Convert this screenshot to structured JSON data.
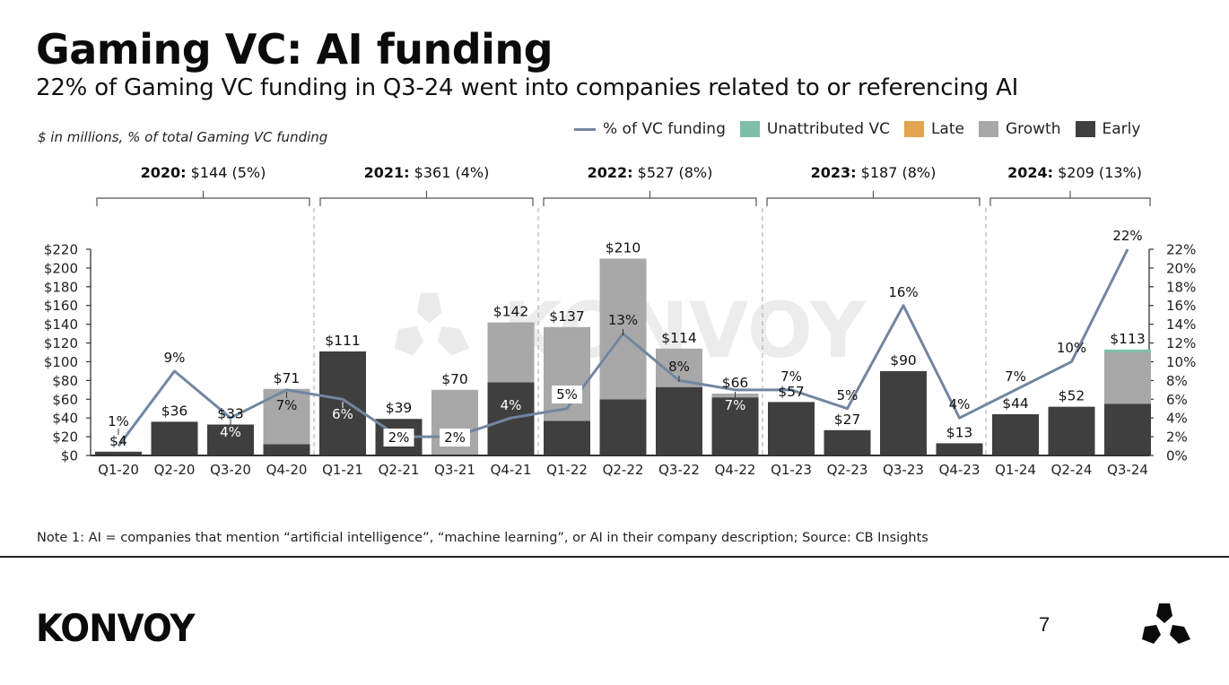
{
  "header": {
    "title": "Gaming VC: AI funding",
    "subtitle": "22% of Gaming VC funding in Q3-24 went into companies related to or referencing AI",
    "units": "$ in millions, % of total Gaming VC funding"
  },
  "legend": [
    {
      "label": "% of VC funding",
      "kind": "line",
      "color": "#7286a0"
    },
    {
      "label": "Unattributed VC",
      "kind": "swatch",
      "color": "#7dbfa8"
    },
    {
      "label": "Late",
      "kind": "swatch",
      "color": "#e3a452"
    },
    {
      "label": "Growth",
      "kind": "swatch",
      "color": "#a8a8a8"
    },
    {
      "label": "Early",
      "kind": "swatch",
      "color": "#3f3f3f"
    }
  ],
  "year_summaries": [
    {
      "year": "2020:",
      "value": " $144 (5%)"
    },
    {
      "year": "2021:",
      "value": " $361 (4%)"
    },
    {
      "year": "2022:",
      "value": " $527 (8%)"
    },
    {
      "year": "2023:",
      "value": " $187 (8%)"
    },
    {
      "year": "2024:",
      "value": " $209 (13%)"
    }
  ],
  "footer": {
    "note": "Note 1: AI = companies that mention “artificial intelligence”, “machine learning”, or AI in their company description; Source: CB Insights",
    "logo": "KONVOY",
    "page_number": "7",
    "watermark": "KONVOY"
  },
  "colors": {
    "early": "#3f3f3f",
    "growth": "#a8a8a8",
    "late": "#e3a452",
    "unattributed": "#7dbfa8",
    "line": "#7286a0"
  },
  "chart_data": {
    "type": "bar",
    "title": "Gaming VC: AI funding",
    "xlabel": "",
    "ylabel": "$ in millions",
    "ylabel_right": "% of total Gaming VC funding",
    "ylim": [
      0,
      220
    ],
    "ylim_right": [
      0,
      22
    ],
    "yticks": [
      "$0",
      "$20",
      "$40",
      "$60",
      "$80",
      "$100",
      "$120",
      "$140",
      "$160",
      "$180",
      "$200",
      "$220"
    ],
    "yticks_right": [
      "0%",
      "2%",
      "4%",
      "6%",
      "8%",
      "10%",
      "12%",
      "14%",
      "16%",
      "18%",
      "20%",
      "22%"
    ],
    "grid": false,
    "legend_position": "top-right",
    "stacked": true,
    "categories": [
      "Q1-20",
      "Q2-20",
      "Q3-20",
      "Q4-20",
      "Q1-21",
      "Q2-21",
      "Q3-21",
      "Q4-21",
      "Q1-22",
      "Q2-22",
      "Q3-22",
      "Q4-22",
      "Q1-23",
      "Q2-23",
      "Q3-23",
      "Q4-23",
      "Q1-24",
      "Q2-24",
      "Q3-24"
    ],
    "totals": [
      4,
      36,
      33,
      71,
      111,
      39,
      70,
      142,
      137,
      210,
      114,
      66,
      57,
      27,
      90,
      13,
      44,
      52,
      113
    ],
    "total_labels": [
      "$4",
      "$36",
      "$33",
      "$71",
      "$111",
      "$39",
      "$70",
      "$142",
      "$137",
      "$210",
      "$114",
      "$66",
      "$57",
      "$27",
      "$90",
      "$13",
      "$44",
      "$52",
      "$113"
    ],
    "series": [
      {
        "name": "Early",
        "type": "bar",
        "values": [
          4,
          36,
          33,
          12,
          111,
          39,
          0,
          78,
          37,
          60,
          73,
          62,
          57,
          27,
          90,
          13,
          44,
          52,
          55
        ]
      },
      {
        "name": "Growth",
        "type": "bar",
        "values": [
          0,
          0,
          0,
          59,
          0,
          0,
          70,
          64,
          100,
          150,
          41,
          4,
          0,
          0,
          0,
          0,
          0,
          0,
          55
        ]
      },
      {
        "name": "Late",
        "type": "bar",
        "values": [
          0,
          0,
          0,
          0,
          0,
          0,
          0,
          0,
          0,
          0,
          0,
          0,
          0,
          0,
          0,
          0,
          0,
          0,
          0
        ]
      },
      {
        "name": "Unattributed VC",
        "type": "bar",
        "values": [
          0,
          0,
          0,
          0,
          0,
          0,
          0,
          0,
          0,
          0,
          0,
          0,
          0,
          0,
          0,
          0,
          0,
          0,
          3
        ]
      },
      {
        "name": "% of VC funding",
        "type": "line",
        "axis": "right",
        "values": [
          1,
          9,
          4,
          7,
          6,
          2,
          2,
          4,
          5,
          13,
          8,
          7,
          7,
          5,
          16,
          4,
          7,
          10,
          22
        ]
      }
    ],
    "pct_labels": [
      "1%",
      "9%",
      "4%",
      "7%",
      "6%",
      "2%",
      "2%",
      "4%",
      "5%",
      "13%",
      "8%",
      "7%",
      "7%",
      "5%",
      "16%",
      "4%",
      "7%",
      "10%",
      "22%"
    ],
    "year_groups": [
      {
        "label": "2020: $144 (5%)",
        "quarters": [
          "Q1-20",
          "Q2-20",
          "Q3-20",
          "Q4-20"
        ]
      },
      {
        "label": "2021: $361 (4%)",
        "quarters": [
          "Q1-21",
          "Q2-21",
          "Q3-21",
          "Q4-21"
        ]
      },
      {
        "label": "2022: $527 (8%)",
        "quarters": [
          "Q1-22",
          "Q2-22",
          "Q3-22",
          "Q4-22"
        ]
      },
      {
        "label": "2023: $187 (8%)",
        "quarters": [
          "Q1-23",
          "Q2-23",
          "Q3-23",
          "Q4-23"
        ]
      },
      {
        "label": "2024: $209 (13%)",
        "quarters": [
          "Q1-24",
          "Q2-24",
          "Q3-24"
        ]
      }
    ]
  }
}
